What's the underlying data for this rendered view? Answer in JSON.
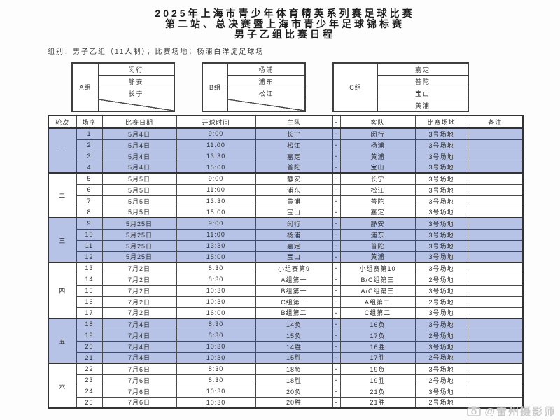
{
  "document": {
    "title_lines": [
      "2025年上海市青少年体育精英系列赛足球比赛",
      "第二站、总决赛暨上海市青少年足球锦标赛",
      "男子乙组比赛日程"
    ],
    "info_line": "组别：男子乙组（11人制）；比赛场地：杨浦白洋淀足球场"
  },
  "groups": [
    {
      "label": "A组",
      "teams": [
        "闵行",
        "静安",
        "长宁"
      ]
    },
    {
      "label": "B组",
      "teams": [
        "杨浦",
        "浦东",
        "松江"
      ]
    },
    {
      "label": "C组",
      "teams": [
        "嘉定",
        "普陀",
        "宝山",
        "黄浦"
      ]
    }
  ],
  "schedule": {
    "headers": [
      "轮次",
      "场序",
      "比赛日期",
      "开球时间",
      "主队",
      "-",
      "客队",
      "比赛场地",
      "备注"
    ],
    "rounds": [
      {
        "label": "一",
        "highlight": true,
        "matches": [
          {
            "no": "1",
            "date": "5月4日",
            "time": "9:00",
            "home": "长宁",
            "vs": "-",
            "away": "闵行",
            "venue": "3号场地",
            "note": ""
          },
          {
            "no": "2",
            "date": "5月4日",
            "time": "11:00",
            "home": "松江",
            "vs": "-",
            "away": "杨浦",
            "venue": "3号场地",
            "note": ""
          },
          {
            "no": "3",
            "date": "5月4日",
            "time": "13:30",
            "home": "嘉定",
            "vs": "-",
            "away": "黄浦",
            "venue": "3号场地",
            "note": ""
          },
          {
            "no": "4",
            "date": "5月4日",
            "time": "15:00",
            "home": "普陀",
            "vs": "-",
            "away": "宝山",
            "venue": "3号场地",
            "note": ""
          }
        ]
      },
      {
        "label": "二",
        "highlight": false,
        "matches": [
          {
            "no": "5",
            "date": "5月5日",
            "time": "9:00",
            "home": "静安",
            "vs": "-",
            "away": "长宁",
            "venue": "3号场地",
            "note": ""
          },
          {
            "no": "6",
            "date": "5月5日",
            "time": "11:00",
            "home": "浦东",
            "vs": "-",
            "away": "松江",
            "venue": "3号场地",
            "note": ""
          },
          {
            "no": "7",
            "date": "5月5日",
            "time": "13:30",
            "home": "黄浦",
            "vs": "-",
            "away": "普陀",
            "venue": "3号场地",
            "note": ""
          },
          {
            "no": "8",
            "date": "5月5日",
            "time": "15:00",
            "home": "宝山",
            "vs": "-",
            "away": "嘉定",
            "venue": "3号场地",
            "note": ""
          }
        ]
      },
      {
        "label": "三",
        "highlight": true,
        "matches": [
          {
            "no": "9",
            "date": "5月25日",
            "time": "9:00",
            "home": "闵行",
            "vs": "-",
            "away": "静安",
            "venue": "3号场地",
            "note": ""
          },
          {
            "no": "10",
            "date": "5月25日",
            "time": "11:00",
            "home": "杨浦",
            "vs": "-",
            "away": "浦东",
            "venue": "3号场地",
            "note": ""
          },
          {
            "no": "11",
            "date": "5月25日",
            "time": "13:30",
            "home": "嘉定",
            "vs": "-",
            "away": "普陀",
            "venue": "3号场地",
            "note": ""
          },
          {
            "no": "12",
            "date": "5月25日",
            "time": "15:00",
            "home": "宝山",
            "vs": "-",
            "away": "黄浦",
            "venue": "3号场地",
            "note": ""
          }
        ]
      },
      {
        "label": "四",
        "highlight": false,
        "matches": [
          {
            "no": "13",
            "date": "7月2日",
            "time": "8:30",
            "home": "小组赛第9",
            "vs": "-",
            "away": "小组赛第10",
            "venue": "3号场地",
            "note": ""
          },
          {
            "no": "14",
            "date": "7月2日",
            "time": "8:30",
            "home": "A组第一",
            "vs": "-",
            "away": "B/C组第三",
            "venue": "2号场地",
            "note": ""
          },
          {
            "no": "15",
            "date": "7月2日",
            "time": "10:30",
            "home": "B组第一",
            "vs": "-",
            "away": "A/C组第三",
            "venue": "3号场地",
            "note": ""
          },
          {
            "no": "16",
            "date": "7月2日",
            "time": "10:30",
            "home": "C组第一",
            "vs": "-",
            "away": "A组第二",
            "venue": "2号场地",
            "note": ""
          },
          {
            "no": "17",
            "date": "7月2日",
            "time": "16:00",
            "home": "B组第二",
            "vs": "-",
            "away": "C组第二",
            "venue": "3号场地",
            "note": ""
          }
        ]
      },
      {
        "label": "五",
        "highlight": true,
        "matches": [
          {
            "no": "18",
            "date": "7月4日",
            "time": "8:30",
            "home": "14负",
            "vs": "-",
            "away": "16负",
            "venue": "3号场地",
            "note": ""
          },
          {
            "no": "19",
            "date": "7月4日",
            "time": "8:30",
            "home": "15负",
            "vs": "-",
            "away": "17负",
            "venue": "2号场地",
            "note": ""
          },
          {
            "no": "20",
            "date": "7月4日",
            "time": "10:30",
            "home": "14胜",
            "vs": "-",
            "away": "16胜",
            "venue": "3号场地",
            "note": ""
          },
          {
            "no": "21",
            "date": "7月4日",
            "time": "10:30",
            "home": "15胜",
            "vs": "-",
            "away": "17胜",
            "venue": "2号场地",
            "note": ""
          }
        ]
      },
      {
        "label": "六",
        "highlight": false,
        "matches": [
          {
            "no": "22",
            "date": "7月6日",
            "time": "8:30",
            "home": "18负",
            "vs": "-",
            "away": "19负",
            "venue": "3号场地",
            "note": ""
          },
          {
            "no": "23",
            "date": "7月6日",
            "time": "8:30",
            "home": "18胜",
            "vs": "-",
            "away": "19胜",
            "venue": "2号场地",
            "note": ""
          },
          {
            "no": "24",
            "date": "7月6日",
            "time": "10:30",
            "home": "20负",
            "vs": "-",
            "away": "21负",
            "venue": "3号场地",
            "note": ""
          },
          {
            "no": "25",
            "date": "7月6日",
            "time": "10:30",
            "home": "20胜",
            "vs": "-",
            "away": "21胜",
            "venue": "2号场地",
            "note": ""
          }
        ]
      }
    ]
  },
  "watermark": {
    "text": "@雷州摄影师"
  },
  "colors": {
    "highlight_row": "#b6c3e6",
    "border": "#3f3f3f",
    "text": "#222222",
    "watermark": "#c9c9c9"
  }
}
